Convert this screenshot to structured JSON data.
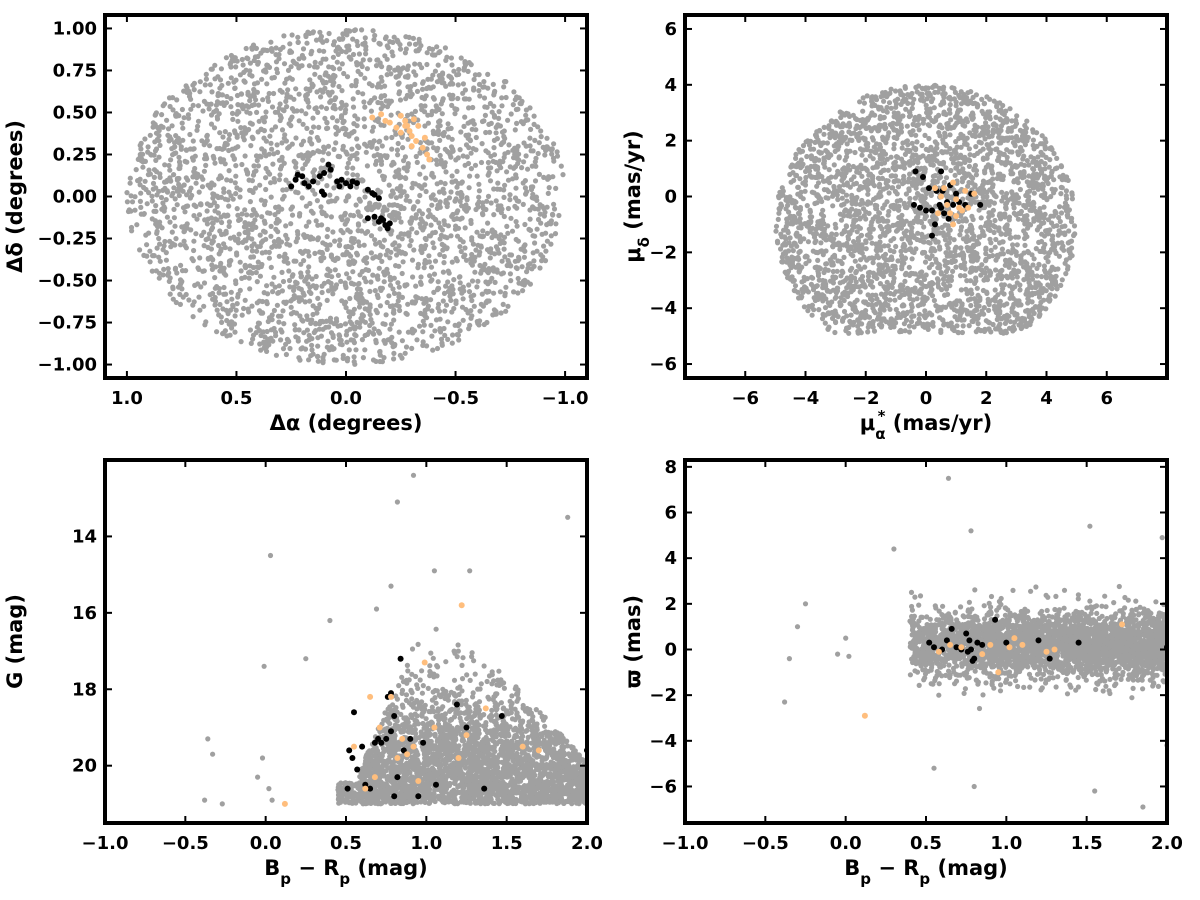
{
  "colors": {
    "field": "#a0a0a0",
    "group_black": "#000000",
    "group_orange": "#ffbe7d"
  },
  "chart_data": [
    {
      "id": "pos",
      "type": "scatter",
      "xlabel": "Δα (degrees)",
      "ylabel": "Δδ (degrees)",
      "xlim": [
        1.1,
        -1.1
      ],
      "ylim": [
        -1.08,
        1.08
      ],
      "xticks": [
        "1.0",
        "0.5",
        "0.0",
        "−0.5",
        "−1.0"
      ],
      "xtick_values": [
        1.0,
        0.5,
        0.0,
        -0.5,
        -1.0
      ],
      "yticks": [
        "−1.00",
        "−0.75",
        "−0.50",
        "−0.25",
        "0.00",
        "0.25",
        "0.50",
        "0.75",
        "1.00"
      ],
      "ytick_values": [
        -1.0,
        -0.75,
        -0.5,
        -0.25,
        0.0,
        0.25,
        0.5,
        0.75,
        1.0
      ],
      "grid": false,
      "series": [
        {
          "color": "#a0a0a0",
          "distribution": "disk",
          "radius_deg": 1.0,
          "count": 3000
        },
        {
          "color": "#000000",
          "points": [
            [
              0.25,
              0.06
            ],
            [
              0.23,
              0.1
            ],
            [
              0.22,
              0.13
            ],
            [
              0.2,
              0.12
            ],
            [
              0.19,
              0.08
            ],
            [
              0.17,
              0.06
            ],
            [
              0.15,
              0.09
            ],
            [
              0.12,
              0.12
            ],
            [
              0.1,
              0.14
            ],
            [
              0.08,
              0.19
            ],
            [
              0.07,
              0.16
            ],
            [
              0.11,
              0.03
            ],
            [
              0.1,
              0.01
            ],
            [
              0.04,
              0.09
            ],
            [
              0.03,
              0.06
            ],
            [
              0.02,
              0.1
            ],
            [
              0.0,
              0.08
            ],
            [
              -0.02,
              0.06
            ],
            [
              -0.03,
              0.09
            ],
            [
              -0.05,
              0.08
            ],
            [
              -0.1,
              0.04
            ],
            [
              -0.12,
              0.02
            ],
            [
              -0.13,
              0.01
            ],
            [
              -0.15,
              -0.01
            ],
            [
              -0.1,
              -0.13
            ],
            [
              -0.13,
              -0.12
            ],
            [
              -0.15,
              -0.15
            ],
            [
              -0.17,
              -0.14
            ],
            [
              -0.18,
              -0.17
            ],
            [
              -0.19,
              -0.19
            ],
            [
              -0.2,
              -0.16
            ],
            [
              -0.16,
              -0.13
            ]
          ]
        },
        {
          "color": "#ffbe7d",
          "points": [
            [
              -0.12,
              0.47
            ],
            [
              -0.16,
              0.49
            ],
            [
              -0.18,
              0.45
            ],
            [
              -0.2,
              0.44
            ],
            [
              -0.23,
              0.41
            ],
            [
              -0.25,
              0.48
            ],
            [
              -0.27,
              0.45
            ],
            [
              -0.28,
              0.42
            ],
            [
              -0.29,
              0.39
            ],
            [
              -0.31,
              0.46
            ],
            [
              -0.3,
              0.36
            ],
            [
              -0.32,
              0.33
            ],
            [
              -0.33,
              0.42
            ],
            [
              -0.35,
              0.29
            ],
            [
              -0.37,
              0.25
            ],
            [
              -0.38,
              0.22
            ],
            [
              -0.36,
              0.35
            ],
            [
              -0.25,
              0.38
            ],
            [
              -0.3,
              0.3
            ],
            [
              -0.27,
              0.42
            ]
          ]
        }
      ]
    },
    {
      "id": "pm",
      "type": "scatter",
      "xlabel": "μα* (mas/yr)",
      "ylabel": "μδ (mas/yr)",
      "xlim": [
        -8,
        8
      ],
      "ylim": [
        -6.5,
        6.5
      ],
      "xticks": [
        "−6",
        "−4",
        "−2",
        "0",
        "2",
        "4",
        "6"
      ],
      "xtick_values": [
        -6,
        -4,
        -2,
        0,
        2,
        4,
        6
      ],
      "yticks": [
        "−6",
        "−4",
        "−2",
        "0",
        "2",
        "4",
        "6"
      ],
      "ytick_values": [
        -6,
        -4,
        -2,
        0,
        2,
        4,
        6
      ],
      "grid": false,
      "series": [
        {
          "color": "#a0a0a0",
          "distribution": "disk",
          "center": [
            0,
            -1.0
          ],
          "radius": 5.0,
          "ycap": [
            -4.9,
            4.9
          ],
          "count": 3000
        },
        {
          "color": "#000000",
          "points": [
            [
              -0.4,
              -0.3
            ],
            [
              -0.35,
              0.9
            ],
            [
              -0.1,
              0.7
            ],
            [
              0.1,
              0.3
            ],
            [
              0.2,
              -0.5
            ],
            [
              0.3,
              -1.0
            ],
            [
              0.35,
              0.2
            ],
            [
              0.45,
              -0.3
            ],
            [
              0.5,
              0.9
            ],
            [
              0.55,
              0.2
            ],
            [
              0.6,
              -0.6
            ],
            [
              0.7,
              -0.2
            ],
            [
              0.75,
              -0.8
            ],
            [
              0.8,
              0.4
            ],
            [
              0.9,
              -0.3
            ],
            [
              1.0,
              0.1
            ],
            [
              1.1,
              -0.2
            ],
            [
              1.3,
              -0.3
            ],
            [
              0.2,
              -1.4
            ],
            [
              -0.2,
              -0.4
            ],
            [
              0.0,
              -0.5
            ],
            [
              0.5,
              -0.4
            ],
            [
              1.8,
              -0.3
            ],
            [
              1.5,
              0.1
            ]
          ]
        },
        {
          "color": "#ffbe7d",
          "points": [
            [
              0.3,
              0.3
            ],
            [
              0.5,
              0.0
            ],
            [
              0.7,
              -0.3
            ],
            [
              0.8,
              -0.6
            ],
            [
              0.9,
              -1.0
            ],
            [
              1.0,
              -0.7
            ],
            [
              1.1,
              -0.4
            ],
            [
              1.2,
              -0.5
            ],
            [
              1.3,
              0.2
            ],
            [
              0.6,
              0.3
            ],
            [
              0.9,
              0.5
            ],
            [
              1.0,
              -0.1
            ],
            [
              1.4,
              -0.4
            ],
            [
              1.6,
              0.1
            ],
            [
              0.4,
              -0.6
            ]
          ]
        }
      ]
    },
    {
      "id": "cmd",
      "type": "scatter",
      "xlabel": "Bp − Rp (mag)",
      "ylabel": "G (mag)",
      "xlim": [
        -1.0,
        2.0
      ],
      "ylim": [
        21.5,
        12.0
      ],
      "xticks": [
        "−1.0",
        "−0.5",
        "0.0",
        "0.5",
        "1.0",
        "1.5",
        "2.0"
      ],
      "xtick_values": [
        -1.0,
        -0.5,
        0.0,
        0.5,
        1.0,
        1.5,
        2.0
      ],
      "yticks": [
        "14",
        "16",
        "18",
        "20"
      ],
      "ytick_values": [
        14,
        16,
        18,
        20
      ],
      "grid": false,
      "series": [
        {
          "color": "#a0a0a0",
          "distribution": "wedge",
          "count": 3000,
          "outliers": [
            [
              -0.38,
              20.9
            ],
            [
              -0.36,
              19.3
            ],
            [
              -0.33,
              19.7
            ],
            [
              -0.27,
              21.0
            ],
            [
              -0.05,
              20.3
            ],
            [
              -0.02,
              19.8
            ],
            [
              -0.01,
              17.4
            ],
            [
              0.02,
              20.6
            ],
            [
              0.03,
              14.5
            ],
            [
              0.04,
              20.9
            ],
            [
              0.25,
              17.2
            ],
            [
              0.4,
              16.2
            ],
            [
              0.69,
              15.9
            ],
            [
              0.78,
              15.3
            ],
            [
              0.82,
              13.1
            ],
            [
              0.92,
              12.4
            ],
            [
              1.05,
              14.9
            ],
            [
              1.27,
              14.9
            ],
            [
              1.88,
              13.5
            ]
          ]
        },
        {
          "color": "#000000",
          "points": [
            [
              0.51,
              20.6
            ],
            [
              0.54,
              19.8
            ],
            [
              0.55,
              18.6
            ],
            [
              0.57,
              20.1
            ],
            [
              0.6,
              19.5
            ],
            [
              0.62,
              20.5
            ],
            [
              0.65,
              20.6
            ],
            [
              0.68,
              19.4
            ],
            [
              0.7,
              19.3
            ],
            [
              0.72,
              19.4
            ],
            [
              0.75,
              19.3
            ],
            [
              0.76,
              18.2
            ],
            [
              0.78,
              18.1
            ],
            [
              0.78,
              19.1
            ],
            [
              0.8,
              20.8
            ],
            [
              0.82,
              20.3
            ],
            [
              0.84,
              17.2
            ],
            [
              0.86,
              19.6
            ],
            [
              0.9,
              19.3
            ],
            [
              0.95,
              20.8
            ],
            [
              0.98,
              19.4
            ],
            [
              1.06,
              20.5
            ],
            [
              1.19,
              18.4
            ],
            [
              1.25,
              19.0
            ],
            [
              1.36,
              20.6
            ],
            [
              1.47,
              18.7
            ],
            [
              2.0,
              19.6
            ],
            [
              0.52,
              19.6
            ],
            [
              0.8,
              18.7
            ]
          ]
        },
        {
          "color": "#ffbe7d",
          "points": [
            [
              0.12,
              21.0
            ],
            [
              0.55,
              19.5
            ],
            [
              0.62,
              20.6
            ],
            [
              0.65,
              18.2
            ],
            [
              0.68,
              20.3
            ],
            [
              0.71,
              19.0
            ],
            [
              0.78,
              18.2
            ],
            [
              0.82,
              19.8
            ],
            [
              0.85,
              19.3
            ],
            [
              0.88,
              19.7
            ],
            [
              0.92,
              19.5
            ],
            [
              0.95,
              20.4
            ],
            [
              0.99,
              17.3
            ],
            [
              1.05,
              19.0
            ],
            [
              1.2,
              19.8
            ],
            [
              1.25,
              19.2
            ],
            [
              1.22,
              15.8
            ],
            [
              1.37,
              18.5
            ],
            [
              1.6,
              19.5
            ],
            [
              1.7,
              19.6
            ]
          ]
        }
      ]
    },
    {
      "id": "plx",
      "type": "scatter",
      "xlabel": "Bp − Rp (mag)",
      "ylabel": "ϖ (mas)",
      "xlim": [
        -1.0,
        2.0
      ],
      "ylim": [
        -7.6,
        8.3
      ],
      "xticks": [
        "−1.0",
        "−0.5",
        "0.0",
        "0.5",
        "1.0",
        "1.5",
        "2.0"
      ],
      "xtick_values": [
        -1.0,
        -0.5,
        0.0,
        0.5,
        1.0,
        1.5,
        2.0
      ],
      "yticks": [
        "−6",
        "−4",
        "−2",
        "0",
        "2",
        "4",
        "6",
        "8"
      ],
      "ytick_values": [
        -6,
        -4,
        -2,
        0,
        2,
        4,
        6,
        8
      ],
      "grid": false,
      "series": [
        {
          "color": "#a0a0a0",
          "distribution": "band",
          "count": 3000,
          "outliers": [
            [
              -0.38,
              -2.3
            ],
            [
              -0.35,
              -0.4
            ],
            [
              -0.3,
              1.0
            ],
            [
              -0.25,
              2.0
            ],
            [
              -0.05,
              -0.2
            ],
            [
              0.0,
              0.5
            ],
            [
              0.02,
              -0.3
            ],
            [
              0.3,
              4.4
            ],
            [
              0.41,
              2.5
            ],
            [
              0.55,
              -5.2
            ],
            [
              0.64,
              7.5
            ],
            [
              0.78,
              5.2
            ],
            [
              0.8,
              -6.0
            ],
            [
              1.52,
              5.4
            ],
            [
              1.55,
              -6.2
            ],
            [
              1.85,
              -6.9
            ],
            [
              1.97,
              4.9
            ],
            [
              2.0,
              -4.2
            ]
          ]
        },
        {
          "color": "#000000",
          "points": [
            [
              0.52,
              0.3
            ],
            [
              0.55,
              0.1
            ],
            [
              0.6,
              0.0
            ],
            [
              0.63,
              0.4
            ],
            [
              0.66,
              0.9
            ],
            [
              0.69,
              0.1
            ],
            [
              0.72,
              0.0
            ],
            [
              0.75,
              0.7
            ],
            [
              0.76,
              -0.1
            ],
            [
              0.77,
              0.4
            ],
            [
              0.78,
              0.0
            ],
            [
              0.79,
              -0.5
            ],
            [
              0.8,
              -0.4
            ],
            [
              0.82,
              0.3
            ],
            [
              0.85,
              0.2
            ],
            [
              0.93,
              1.3
            ],
            [
              1.0,
              0.3
            ],
            [
              1.2,
              0.4
            ],
            [
              1.27,
              -0.4
            ],
            [
              1.45,
              0.3
            ],
            [
              2.0,
              0.1
            ]
          ]
        },
        {
          "color": "#ffbe7d",
          "points": [
            [
              0.12,
              -2.9
            ],
            [
              0.58,
              -0.1
            ],
            [
              0.65,
              0.2
            ],
            [
              0.72,
              0.1
            ],
            [
              0.85,
              -0.2
            ],
            [
              0.9,
              0.2
            ],
            [
              0.95,
              -1.0
            ],
            [
              1.02,
              0.1
            ],
            [
              1.05,
              0.5
            ],
            [
              1.1,
              0.2
            ],
            [
              1.25,
              -0.1
            ],
            [
              1.3,
              0.0
            ],
            [
              1.72,
              1.1
            ]
          ]
        }
      ]
    }
  ]
}
